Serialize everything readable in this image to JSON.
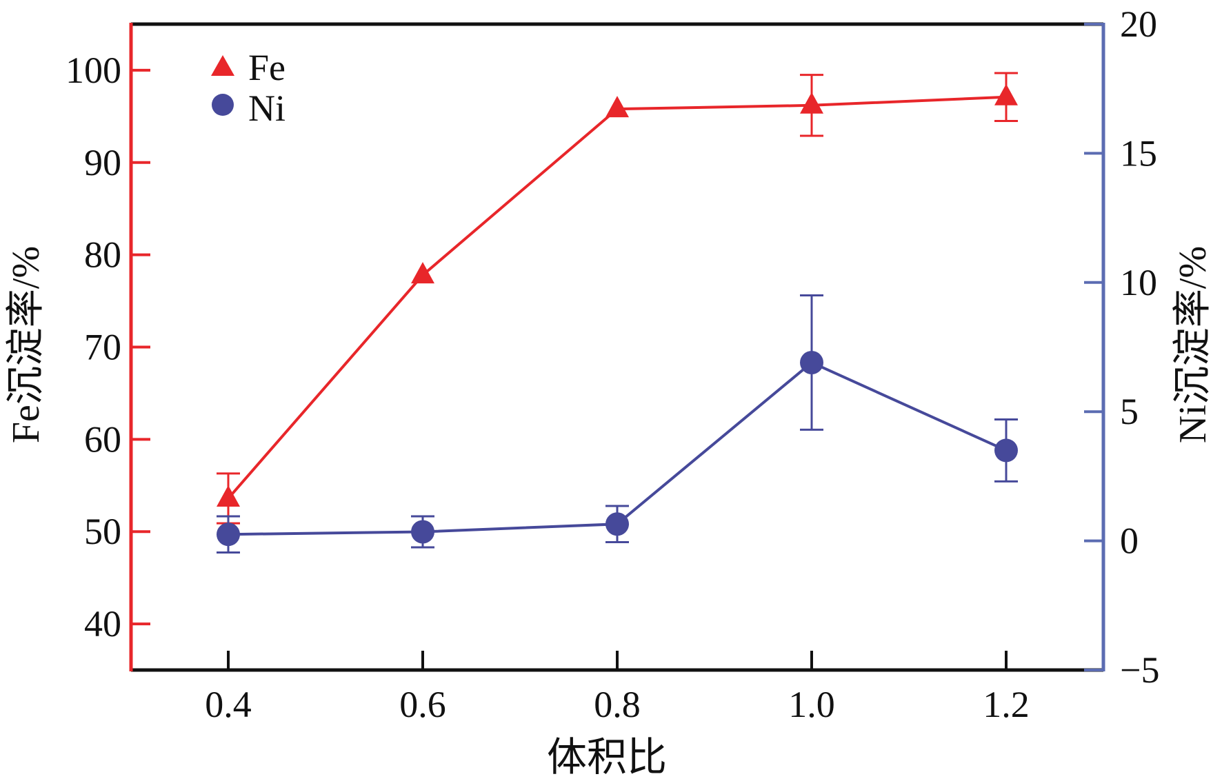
{
  "colors": {
    "fe": "#e8262a",
    "ni": "#46499a",
    "ni_axis": "#5b6cb2",
    "frame": "#111111"
  },
  "chart_data": {
    "type": "line",
    "title": "",
    "xlabel": "体积比",
    "ylabel_left": "Fe沉淀率/%",
    "ylabel_right": "Ni沉淀率/%",
    "x": [
      0.4,
      0.6,
      0.8,
      1.0,
      1.2
    ],
    "x_ticks": [
      "0.4",
      "0.6",
      "0.8",
      "1.0",
      "1.2"
    ],
    "xlim": [
      0.3,
      1.3
    ],
    "ylim_left": [
      35,
      105
    ],
    "ylim_right": [
      -5,
      20
    ],
    "y_ticks_left": [
      "40",
      "50",
      "60",
      "70",
      "80",
      "90",
      "100"
    ],
    "y_ticks_right": [
      "−5",
      "0",
      "5",
      "10",
      "15",
      "20"
    ],
    "legend_position": "top-left",
    "series": [
      {
        "name": "Fe",
        "axis": "left",
        "marker": "triangle",
        "values": [
          53.6,
          77.8,
          95.8,
          96.2,
          97.1
        ],
        "errors": [
          2.7,
          0,
          0,
          3.3,
          2.6
        ]
      },
      {
        "name": "Ni",
        "axis": "right",
        "marker": "circle",
        "values": [
          0.25,
          0.35,
          0.65,
          6.9,
          3.5
        ],
        "errors": [
          0.7,
          0.6,
          0.7,
          2.6,
          1.2
        ]
      }
    ]
  }
}
